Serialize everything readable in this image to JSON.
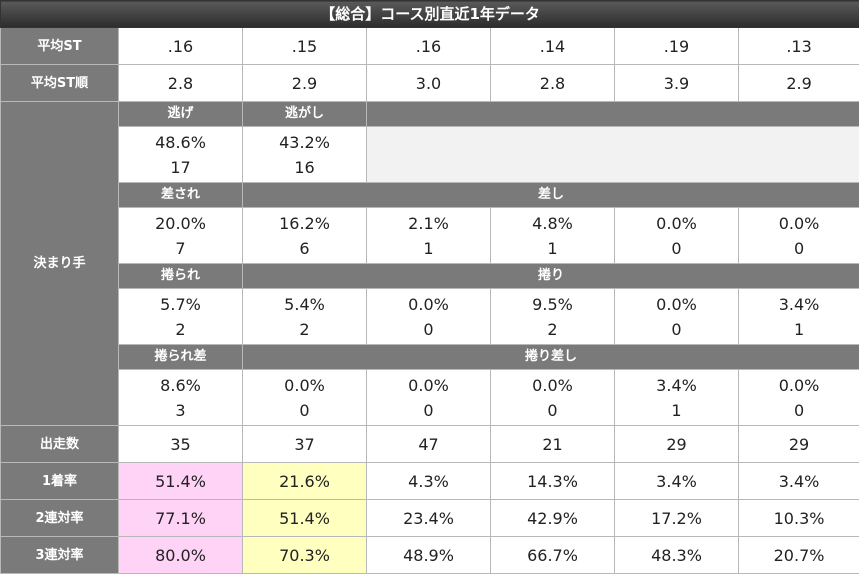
{
  "title": "【総合】コース別直近1年データ",
  "avg_st": {
    "label": "平均ST",
    "values": [
      ".16",
      ".15",
      ".16",
      ".14",
      ".19",
      ".13"
    ]
  },
  "avg_st_rank": {
    "label": "平均ST順",
    "values": [
      "2.8",
      "2.9",
      "3.0",
      "2.8",
      "3.9",
      "2.9"
    ]
  },
  "kimarite": {
    "label": "決まり手",
    "nige": {
      "label": "逃げ",
      "rate": "48.6%",
      "count": "17"
    },
    "nigashi": {
      "label": "逃がし",
      "rate": "43.2%",
      "count": "16"
    },
    "sasare": {
      "label": "差され",
      "rate": "20.0%",
      "count": "7"
    },
    "sashi": {
      "label": "差し",
      "rates": [
        "16.2%",
        "2.1%",
        "4.8%",
        "0.0%",
        "0.0%"
      ],
      "counts": [
        "6",
        "1",
        "1",
        "0",
        "0"
      ]
    },
    "makurare": {
      "label": "捲られ",
      "rate": "5.7%",
      "count": "2"
    },
    "makuri": {
      "label": "捲り",
      "rates": [
        "5.4%",
        "0.0%",
        "9.5%",
        "0.0%",
        "3.4%"
      ],
      "counts": [
        "2",
        "0",
        "2",
        "0",
        "1"
      ]
    },
    "makurare_sashi": {
      "label": "捲られ差",
      "rate": "8.6%",
      "count": "3"
    },
    "makuri_sashi": {
      "label": "捲り差し",
      "rates": [
        "0.0%",
        "0.0%",
        "0.0%",
        "3.4%",
        "0.0%"
      ],
      "counts": [
        "0",
        "0",
        "0",
        "1",
        "0"
      ]
    }
  },
  "starts": {
    "label": "出走数",
    "values": [
      "35",
      "37",
      "47",
      "21",
      "29",
      "29"
    ]
  },
  "win_rate": {
    "label": "1着率",
    "values": [
      "51.4%",
      "21.6%",
      "4.3%",
      "14.3%",
      "3.4%",
      "3.4%"
    ]
  },
  "top2_rate": {
    "label": "2連対率",
    "values": [
      "77.1%",
      "51.4%",
      "23.4%",
      "42.9%",
      "17.2%",
      "10.3%"
    ]
  },
  "top3_rate": {
    "label": "3連対率",
    "values": [
      "80.0%",
      "70.3%",
      "48.9%",
      "66.7%",
      "48.3%",
      "20.7%"
    ]
  },
  "highlight_colors": {
    "course1": "#ffd3f6",
    "course2": "#ffffbf"
  }
}
